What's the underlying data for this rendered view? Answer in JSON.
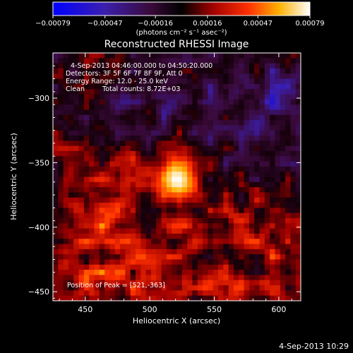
{
  "chart_data": {
    "type": "heatmap",
    "title": "Reconstructed RHESSI Image",
    "xlabel": "Heliocentric X (arcsec)",
    "ylabel": "Heliocentric Y (arcsec)",
    "xlim": [
      425,
      617
    ],
    "ylim": [
      -457,
      -265
    ],
    "x_ticks": [
      450,
      500,
      550,
      600
    ],
    "x_tick_labels": [
      "450",
      "500",
      "550",
      "600"
    ],
    "y_ticks": [
      -300,
      -350,
      -400,
      -450
    ],
    "y_tick_labels": [
      "−300",
      "−350",
      "−400",
      "−450"
    ],
    "colorbar": {
      "min": -0.00079,
      "max": 0.00079,
      "ticks": [
        -0.00079,
        -0.00047,
        -0.00016,
        0.00016,
        0.00047,
        0.00079
      ],
      "tick_labels": [
        "−0.00079",
        "−0.00047",
        "−0.00016",
        "0.00016",
        "0.00047",
        "0.00079"
      ],
      "units": "(photons cm⁻² s⁻¹ asec⁻²)"
    },
    "peak": {
      "x": 521,
      "y": -363,
      "value": 0.00079
    },
    "annotations": {
      "time_range": "4-Sep-2013 04:46:00.000 to 04:50:20.000",
      "detectors": "Detectors: 3F 5F 6F 7F 8F 9F, Att 0",
      "energy": "Energy Range: 12.0 - 25.0 keV",
      "clean": "Clean",
      "counts": "Total counts: 8.72E+03",
      "peak_position": "Position of Peak = [521,-363]"
    },
    "footer_timestamp": "4-Sep-2013 10:29"
  }
}
